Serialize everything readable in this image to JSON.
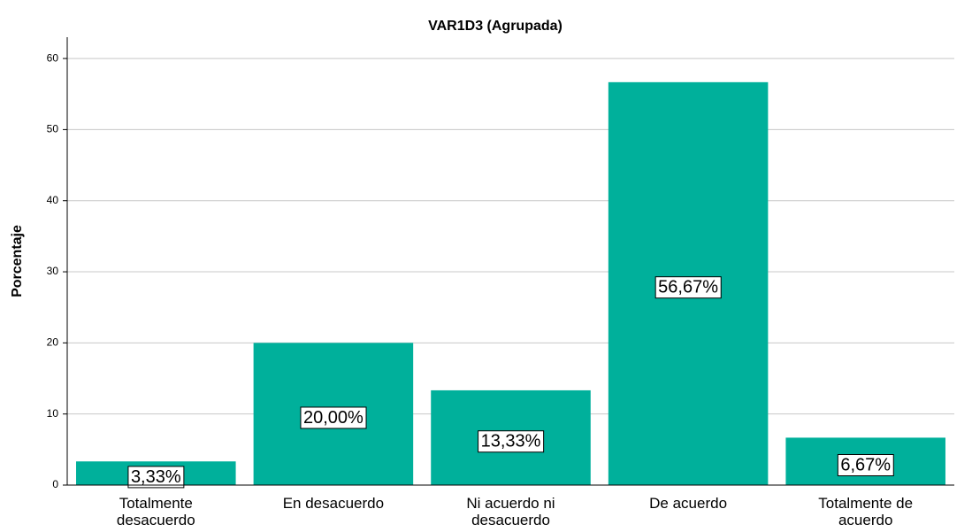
{
  "chart_data": {
    "type": "bar",
    "title": "VAR1D3 (Agrupada)",
    "y_label": "Porcentaje",
    "categories": [
      "Totalmente desacuerdo",
      "En desacuerdo",
      "Ni acuerdo ni desacuerdo",
      "De acuerdo",
      "Totalmente de acuerdo"
    ],
    "values": [
      3.33,
      20.0,
      13.33,
      56.67,
      6.67
    ],
    "value_labels": [
      "3,33%",
      "20,00%",
      "13,33%",
      "56,67%",
      "6,67%"
    ],
    "color": "#00b09b",
    "ylim": [
      0,
      63
    ],
    "yticks": [
      0,
      10,
      20,
      30,
      40,
      50,
      60
    ],
    "grid": true
  }
}
